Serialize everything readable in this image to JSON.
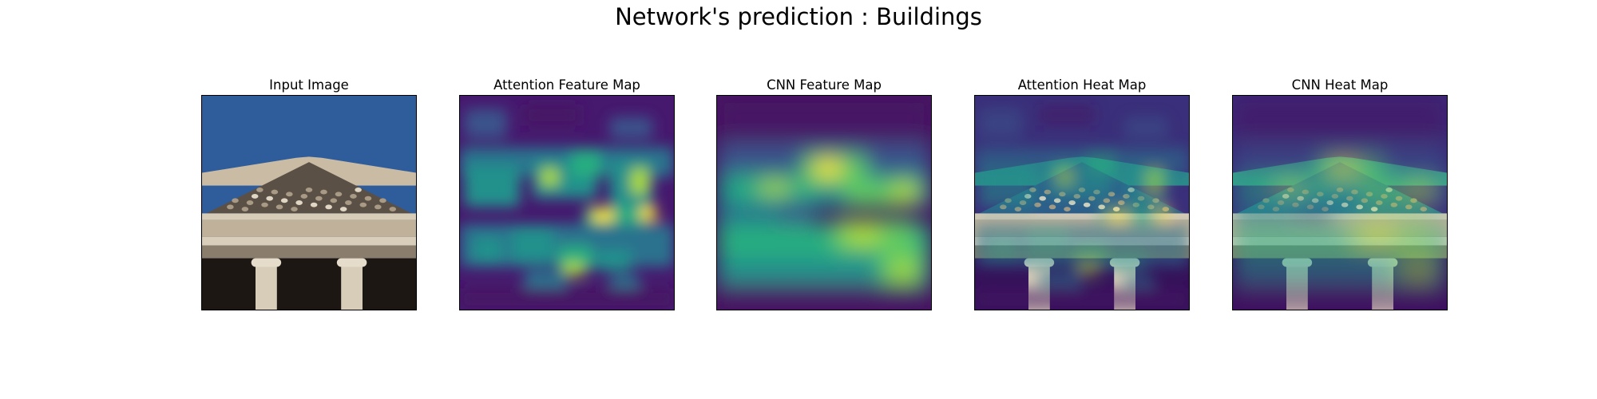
{
  "figure": {
    "title": "Network's prediction : Buildings"
  },
  "panels": [
    {
      "title": "Input Image",
      "kind": "photo"
    },
    {
      "title": "Attention Feature Map",
      "kind": "attention-feature"
    },
    {
      "title": "CNN Feature Map",
      "kind": "cnn-feature"
    },
    {
      "title": "Attention Heat Map",
      "kind": "attention-heat"
    },
    {
      "title": "CNN Heat Map",
      "kind": "cnn-heat"
    }
  ],
  "chart_data": {
    "type": "heatmap",
    "title": "Network's prediction : Buildings",
    "colormap": "viridis",
    "axes_ticks": "none",
    "subplots": [
      "Input Image",
      "Attention Feature Map",
      "CNN Feature Map",
      "Attention Heat Map",
      "CNN Heat Map"
    ]
  },
  "colors": {
    "sky": "#2f5c9a",
    "stone_light": "#c9bba4",
    "stone_dark": "#5b5046",
    "shadow": "#1c1712",
    "viridis_low": "#440154",
    "viridis_mid": "#21918c",
    "viridis_high": "#fde725"
  }
}
